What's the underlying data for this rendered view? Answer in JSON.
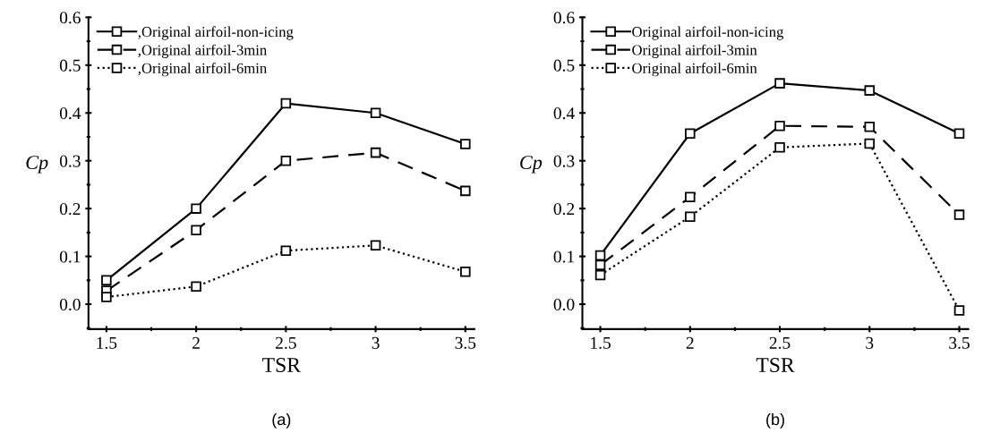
{
  "chart_data": [
    {
      "type": "line",
      "xlabel": "TSR",
      "ylabel": "Cp",
      "annotations": [
        "(a)"
      ],
      "x": [
        1.5,
        2,
        2.5,
        3,
        3.5
      ],
      "xlim": [
        1.4,
        3.55
      ],
      "xticks": [
        1.5,
        2,
        2.5,
        3,
        3.5
      ],
      "ylim": [
        -0.052,
        0.6
      ],
      "yticks": [
        {
          "value": 0,
          "label": "0.0"
        },
        0.1,
        0.2,
        0.3,
        0.4,
        0.5,
        0.6
      ],
      "marker": "square",
      "legend": "top left",
      "grid": false,
      "series": [
        {
          "name": ",Original airfoil-non-icing",
          "color": "#000000",
          "line_style": "solid",
          "values": [
            0.05,
            0.2,
            0.42,
            0.4,
            0.335
          ]
        },
        {
          "name": ",Original airfoil-3min",
          "color": "#000000",
          "line_style": "dashed",
          "values": [
            0.028,
            0.155,
            0.3,
            0.317,
            0.237
          ]
        },
        {
          "name": ",Original airfoil-6min",
          "color": "#000000",
          "line_style": "dotted",
          "values": [
            0.015,
            0.037,
            0.112,
            0.123,
            0.068
          ]
        }
      ]
    },
    {
      "type": "line",
      "xlabel": "TSR",
      "ylabel": "Cp",
      "annotations": [
        "(b)"
      ],
      "x": [
        1.5,
        2,
        2.5,
        3,
        3.5
      ],
      "xlim": [
        1.4,
        3.55
      ],
      "xticks": [
        1.5,
        2,
        2.5,
        3,
        3.5
      ],
      "ylim": [
        -0.052,
        0.6
      ],
      "yticks": [
        {
          "value": 0,
          "label": "0.0"
        },
        0.1,
        0.2,
        0.3,
        0.4,
        0.5,
        0.6
      ],
      "marker": "square",
      "legend": "top left",
      "grid": false,
      "series": [
        {
          "name": "Original airfoil-non-icing",
          "color": "#000000",
          "line_style": "solid",
          "values": [
            0.102,
            0.357,
            0.462,
            0.447,
            0.357
          ]
        },
        {
          "name": "Original airfoil-3min",
          "color": "#000000",
          "line_style": "dashed",
          "values": [
            0.082,
            0.224,
            0.373,
            0.371,
            0.187
          ]
        },
        {
          "name": "Original airfoil-6min",
          "color": "#000000",
          "line_style": "dotted",
          "values": [
            0.061,
            0.183,
            0.328,
            0.336,
            -0.013
          ]
        }
      ]
    }
  ]
}
